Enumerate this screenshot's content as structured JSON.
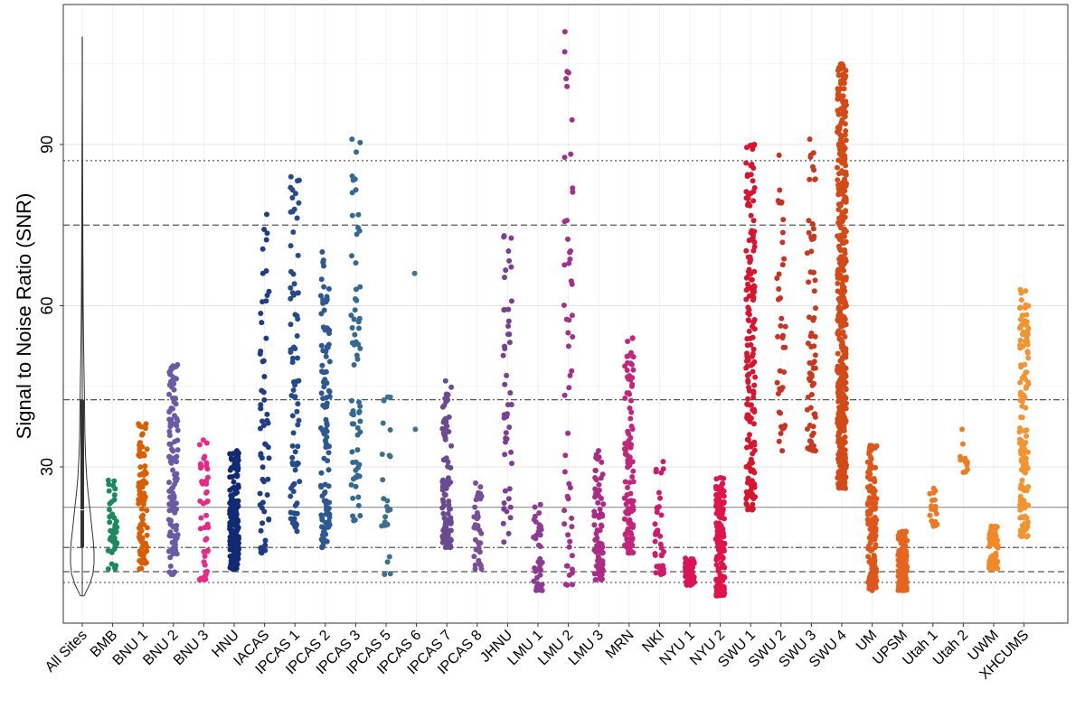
{
  "chart_data": {
    "type": "scatter",
    "title": "",
    "xlabel": "",
    "ylabel": "Signal to Noise Ratio (SNR)",
    "ylim": [
      2,
      116
    ],
    "y_ticks": [
      30,
      60,
      90
    ],
    "grid": true,
    "legend": "none",
    "categories": [
      "All Sites",
      "BMB",
      "BNU 1",
      "BNU 2",
      "BNU 3",
      "HNU",
      "IACAS",
      "IPCAS 1",
      "IPCAS 2",
      "IPCAS 3",
      "IPCAS 5",
      "IPCAS 6",
      "IPCAS 7",
      "IPCAS 8",
      "JHNU",
      "LMU 1",
      "LMU 2",
      "LMU 3",
      "MRN",
      "NKI",
      "NYU 1",
      "NYU 2",
      "SWU 1",
      "SWU 2",
      "SWU 3",
      "SWU 4",
      "UM",
      "UPSM",
      "Utah 1",
      "Utah 2",
      "UWM",
      "XHCUMS"
    ],
    "reference_lines": [
      {
        "style": "dotted",
        "y": 87
      },
      {
        "style": "dashed",
        "y": 75
      },
      {
        "style": "dashdot",
        "y": 42.5
      },
      {
        "style": "solid",
        "y": 22.5
      },
      {
        "style": "dashdot",
        "y": 15
      },
      {
        "style": "dashed",
        "y": 10.5
      },
      {
        "style": "dotted",
        "y": 8.5
      }
    ],
    "violin": {
      "category": "All Sites",
      "ymin": 6,
      "ymax": 110,
      "q1": 15,
      "median": 22,
      "q3": 42.5,
      "whisker_low": 6,
      "whisker_high": 84,
      "density": [
        [
          6,
          0.15
        ],
        [
          8,
          0.6
        ],
        [
          10,
          0.9
        ],
        [
          12,
          1.0
        ],
        [
          14,
          1.0
        ],
        [
          16,
          0.95
        ],
        [
          18,
          0.85
        ],
        [
          20,
          0.75
        ],
        [
          22,
          0.65
        ],
        [
          25,
          0.5
        ],
        [
          28,
          0.38
        ],
        [
          32,
          0.28
        ],
        [
          36,
          0.22
        ],
        [
          40,
          0.2
        ],
        [
          45,
          0.17
        ],
        [
          50,
          0.13
        ],
        [
          55,
          0.1
        ],
        [
          60,
          0.08
        ],
        [
          70,
          0.05
        ],
        [
          80,
          0.035
        ],
        [
          90,
          0.02
        ],
        [
          100,
          0.01
        ],
        [
          110,
          0.005
        ]
      ]
    },
    "series": [
      {
        "name": "BMB",
        "color": "#1b8a5e",
        "n": 45,
        "min": 11,
        "max": 27.5
      },
      {
        "name": "BNU 1",
        "color": "#d95f02",
        "n": 90,
        "min": 11,
        "max": 38
      },
      {
        "name": "BNU 2",
        "color": "#6b5ba6",
        "n": 120,
        "min": 10,
        "max": 49
      },
      {
        "name": "BNU 3",
        "color": "#e7298a",
        "n": 45,
        "min": 9,
        "max": 35
      },
      {
        "name": "HNU",
        "color": "#102a75",
        "n": 180,
        "min": 11,
        "max": 33
      },
      {
        "name": "IACAS",
        "color": "#1e3d85",
        "n": 60,
        "min": 14,
        "max": 77
      },
      {
        "name": "IPCAS 1",
        "color": "#244b8e",
        "n": 80,
        "min": 18,
        "max": 84
      },
      {
        "name": "IPCAS 2",
        "color": "#2c5a90",
        "n": 110,
        "min": 15,
        "max": 70
      },
      {
        "name": "IPCAS 3",
        "color": "#336a94",
        "n": 70,
        "min": 20,
        "max": 91
      },
      {
        "name": "IPCAS 5",
        "color": "#3a7090",
        "n": 25,
        "min": 10,
        "max": 43
      },
      {
        "name": "IPCAS 6",
        "color": "#3f7890",
        "n": 2,
        "min": 37,
        "max": 66
      },
      {
        "name": "IPCAS 7",
        "color": "#6a4b92",
        "n": 110,
        "min": 15,
        "max": 46
      },
      {
        "name": "IPCAS 8",
        "color": "#7a4f9a",
        "n": 40,
        "min": 11,
        "max": 27
      },
      {
        "name": "JHNU",
        "color": "#7b3f93",
        "n": 50,
        "min": 16,
        "max": 73
      },
      {
        "name": "LMU 1",
        "color": "#8e3b96",
        "n": 45,
        "min": 7,
        "max": 23
      },
      {
        "name": "LMU 2",
        "color": "#a0318c",
        "n": 55,
        "min": 8,
        "max": 111
      },
      {
        "name": "LMU 3",
        "color": "#ab2b86",
        "n": 80,
        "min": 9,
        "max": 33
      },
      {
        "name": "MRN",
        "color": "#c2267c",
        "n": 120,
        "min": 14,
        "max": 54
      },
      {
        "name": "NKI",
        "color": "#cc1c6a",
        "n": 40,
        "min": 10,
        "max": 31
      },
      {
        "name": "NYU 1",
        "color": "#d91457",
        "n": 70,
        "min": 8,
        "max": 13
      },
      {
        "name": "NYU 2",
        "color": "#e0134b",
        "n": 150,
        "min": 6,
        "max": 28
      },
      {
        "name": "SWU 1",
        "color": "#d7152f",
        "n": 180,
        "min": 22,
        "max": 90
      },
      {
        "name": "SWU 2",
        "color": "#c93223",
        "n": 40,
        "min": 33,
        "max": 88
      },
      {
        "name": "SWU 3",
        "color": "#c8391e",
        "n": 70,
        "min": 33,
        "max": 91
      },
      {
        "name": "SWU 4",
        "color": "#d44a17",
        "n": 450,
        "min": 26,
        "max": 105
      },
      {
        "name": "UM",
        "color": "#e0561a",
        "n": 150,
        "min": 7,
        "max": 34
      },
      {
        "name": "UPSM",
        "color": "#e8651f",
        "n": 160,
        "min": 7,
        "max": 18
      },
      {
        "name": "Utah 1",
        "color": "#ec7a22",
        "n": 25,
        "min": 19,
        "max": 26
      },
      {
        "name": "Utah 2",
        "color": "#ec7e22",
        "n": 12,
        "min": 29,
        "max": 37
      },
      {
        "name": "UWM",
        "color": "#f08a26",
        "n": 70,
        "min": 11,
        "max": 19
      },
      {
        "name": "XHCUMS",
        "color": "#f29430",
        "n": 150,
        "min": 17,
        "max": 63
      }
    ]
  }
}
